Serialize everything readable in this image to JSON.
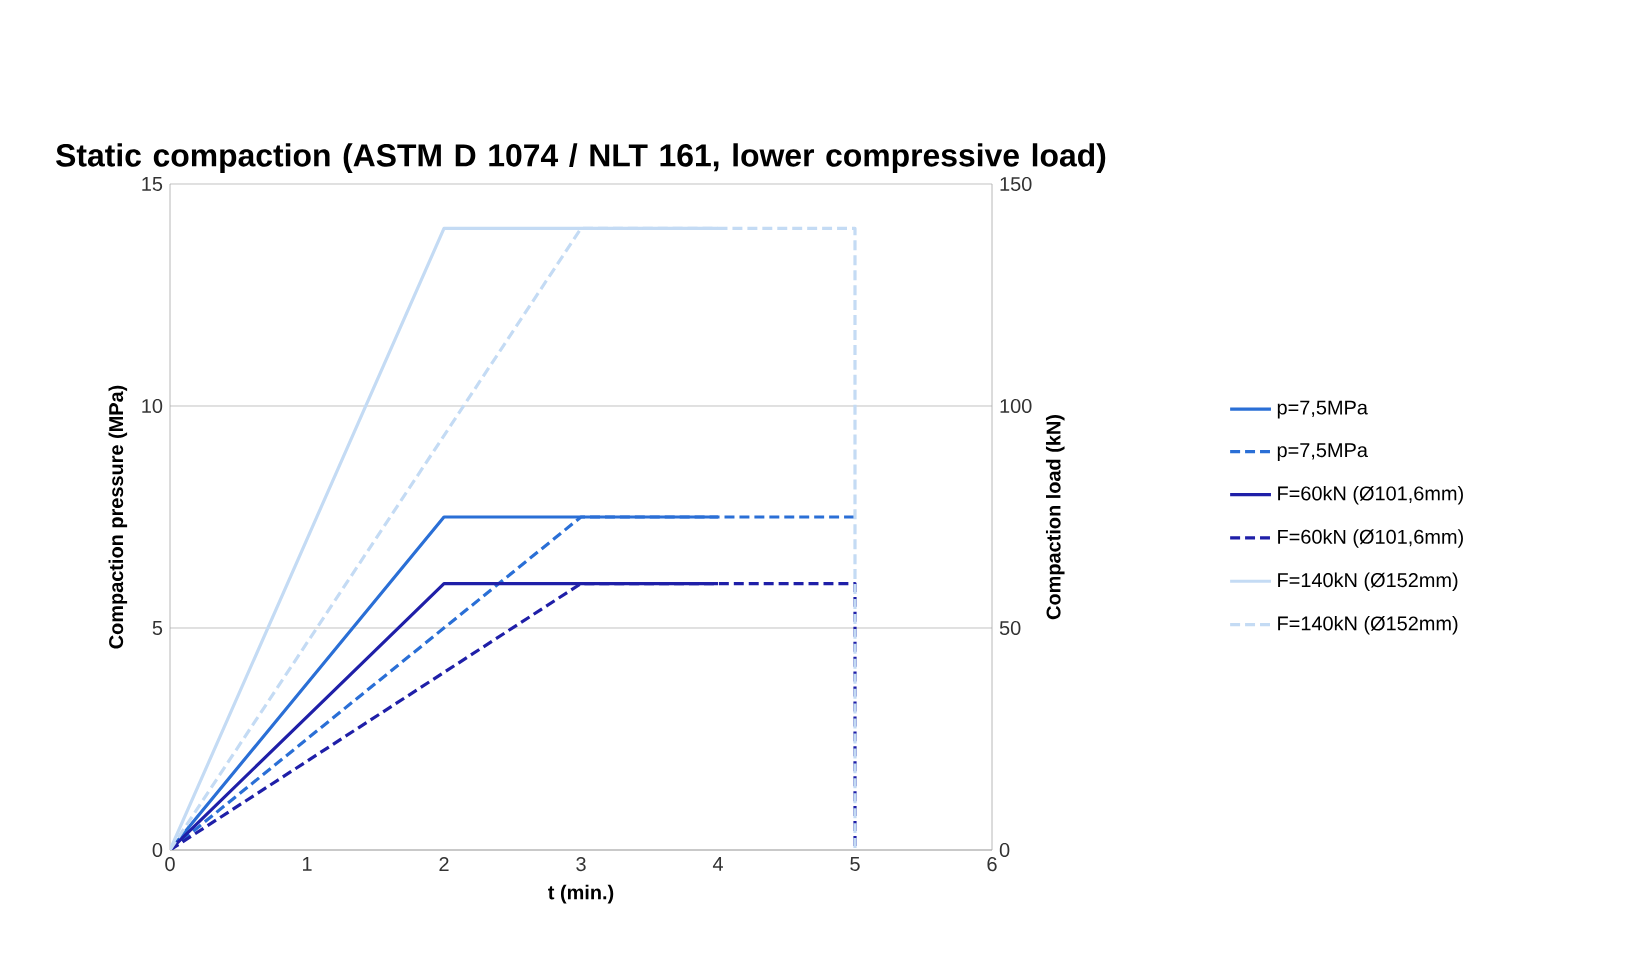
{
  "chart_data": {
    "type": "line",
    "title": "Static compaction (ASTM D 1074 / NLT 161, lower compressive load)",
    "xlabel": "t (min.)",
    "ylabel": "Compaction pressure (MPa)",
    "y2label": "Compaction load (kN)",
    "xlim": [
      0,
      6
    ],
    "xticks": [
      0,
      1,
      2,
      3,
      4,
      5,
      6
    ],
    "ylim": [
      0,
      15
    ],
    "yticks": [
      0,
      5,
      10,
      15
    ],
    "y2lim": [
      0,
      150
    ],
    "y2ticks": [
      0,
      50,
      100,
      150
    ],
    "grid": "y",
    "legend": "right",
    "marker": "none",
    "series": [
      {
        "name": "p=7,5MPa",
        "color": "#2a6fd6",
        "line_style": "solid",
        "x": [
          0,
          2,
          4
        ],
        "values": [
          0,
          7.5,
          7.5
        ]
      },
      {
        "name": "p=7,5MPa",
        "color": "#2a6fd6",
        "line_style": "dashed",
        "x": [
          0,
          3,
          5
        ],
        "values": [
          0,
          7.5,
          7.5
        ]
      },
      {
        "name": "F=60kN (Ø101,6mm)",
        "color": "#1f1fa8",
        "line_style": "solid",
        "axis": "y2",
        "x": [
          0,
          2,
          4
        ],
        "values": [
          0,
          60,
          60
        ]
      },
      {
        "name": "F=60kN (Ø101,6mm)",
        "color": "#1f1fa8",
        "line_style": "dashed",
        "axis": "y2",
        "x": [
          0,
          3,
          5,
          5
        ],
        "values": [
          0,
          60,
          60,
          0
        ]
      },
      {
        "name": "F=140kN (Ø152mm)",
        "color": "#c4dbf4",
        "line_style": "solid",
        "axis": "y2",
        "x": [
          0,
          2,
          4
        ],
        "values": [
          0,
          140,
          140
        ]
      },
      {
        "name": "F=140kN (Ø152mm)",
        "color": "#c4dbf4",
        "line_style": "dashed",
        "axis": "y2",
        "x": [
          0,
          3,
          5,
          5
        ],
        "values": [
          0,
          140,
          140,
          0
        ]
      }
    ]
  }
}
